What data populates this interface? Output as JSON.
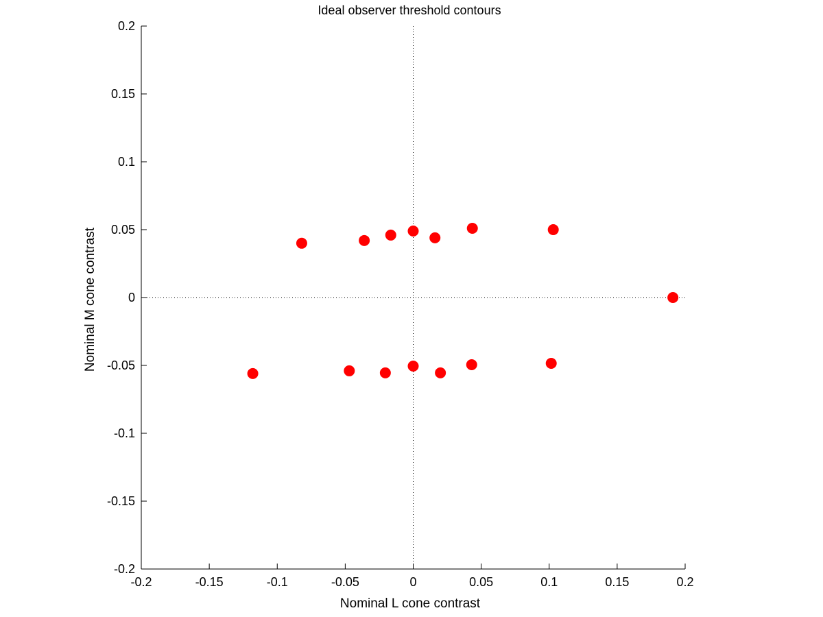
{
  "chart_data": {
    "type": "scatter",
    "title": "Ideal observer threshold contours",
    "xlabel": "Nominal L cone contrast",
    "ylabel": "Nominal M cone contrast",
    "xlim": [
      -0.2,
      0.2
    ],
    "ylim": [
      -0.2,
      0.2
    ],
    "xticks": [
      -0.2,
      -0.15,
      -0.1,
      -0.05,
      0,
      0.05,
      0.1,
      0.15,
      0.2
    ],
    "yticks": [
      -0.2,
      -0.15,
      -0.1,
      -0.05,
      0,
      0.05,
      0.1,
      0.15,
      0.2
    ],
    "xtick_labels": [
      "-0.2",
      "-0.15",
      "-0.1",
      "-0.05",
      "0",
      "0.05",
      "0.1",
      "0.15",
      "0.2"
    ],
    "ytick_labels": [
      "-0.2",
      "-0.15",
      "-0.1",
      "-0.05",
      "0",
      "0.05",
      "0.1",
      "0.15",
      "0.2"
    ],
    "reference_lines": {
      "x": 0,
      "y": 0,
      "style": "dotted"
    },
    "grid": false,
    "legend": "none",
    "marker_color": "#ff0000",
    "series": [
      {
        "x": [
          -0.082,
          -0.036,
          -0.0165,
          0.0,
          0.016,
          0.0435,
          0.103,
          0.191,
          -0.118,
          -0.047,
          -0.0205,
          0.0,
          0.02,
          0.043,
          0.1015
        ],
        "y": [
          0.04,
          0.042,
          0.046,
          0.049,
          0.044,
          0.051,
          0.05,
          0.0,
          -0.056,
          -0.054,
          -0.0555,
          -0.0505,
          -0.0555,
          -0.0495,
          -0.0485
        ]
      }
    ]
  }
}
